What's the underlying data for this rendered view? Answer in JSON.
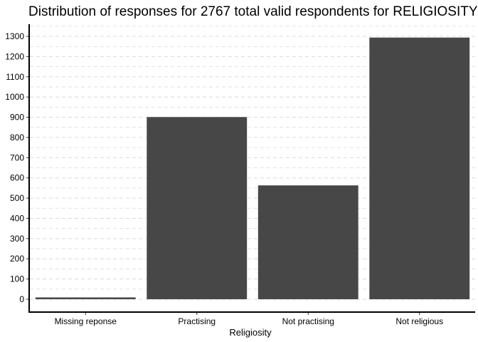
{
  "chart_data": {
    "type": "bar",
    "title": "Distribution of responses for 2767 total valid respondents for RELIGIOSITY",
    "xlabel": "Religiosity",
    "ylabel": "",
    "categories": [
      "Missing reponse",
      "Practising",
      "Not practising",
      "Not religious"
    ],
    "values": [
      9,
      901,
      563,
      1294
    ],
    "ylim": [
      -60,
      1360
    ],
    "yticks": [
      0,
      100,
      200,
      300,
      400,
      500,
      600,
      700,
      800,
      900,
      1000,
      1100,
      1200,
      1300
    ],
    "grid": true,
    "legend": "none",
    "colors": {
      "bar": "#474747",
      "grid": "#d9d9d9",
      "axis": "#000000",
      "background": "#ffffff"
    }
  }
}
